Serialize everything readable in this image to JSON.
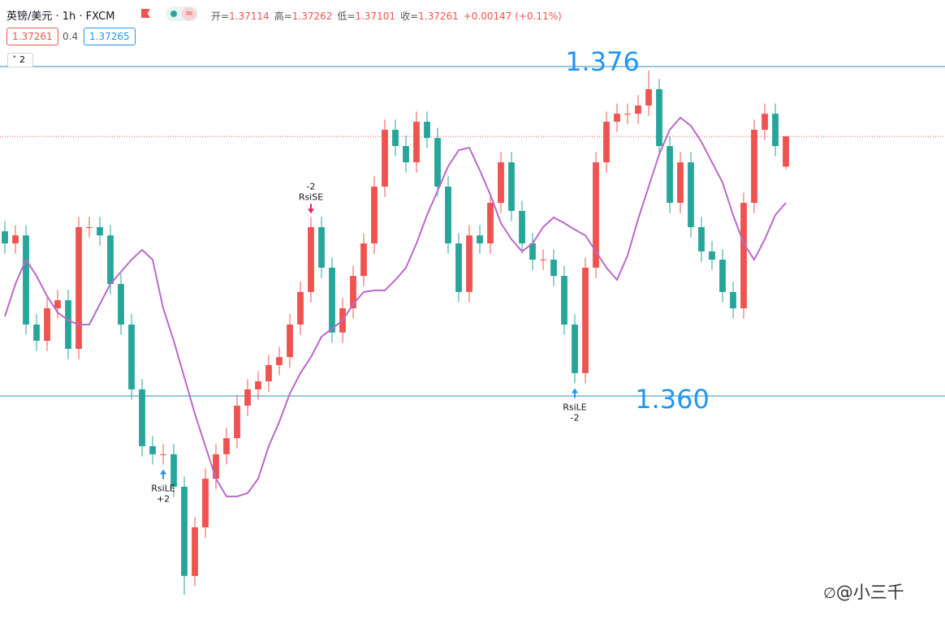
{
  "header": {
    "symbol": "英镑/美元 · 1h · FXCM",
    "ohlc": [
      {
        "label": "开=",
        "value": "1.37114"
      },
      {
        "label": "高=",
        "value": "1.37262"
      },
      {
        "label": "低=",
        "value": "1.37101"
      },
      {
        "label": "收=",
        "value": "1.37261"
      }
    ],
    "change": "+0.00147 (+0.11%)",
    "bid": "1.37261",
    "spread": "0.4",
    "ask": "1.37265",
    "indicators": "2"
  },
  "watermark": "@小三千",
  "chart_data": {
    "type": "candlestick",
    "open": [
      1.368,
      1.36741,
      1.3678,
      1.36347,
      1.36268,
      1.36426,
      1.36465,
      1.36229,
      1.3682,
      1.3682,
      1.3678,
      1.36544,
      1.36347,
      1.36032,
      1.35756,
      1.35717,
      1.35717,
      1.35559,
      1.35126,
      1.35362,
      1.35598,
      1.35717,
      1.35795,
      1.35953,
      1.36032,
      1.36071,
      1.3615,
      1.36189,
      1.36347,
      1.36505,
      1.3682,
      1.36623,
      1.36308,
      1.36426,
      1.36583,
      1.36741,
      1.37017,
      1.37293,
      1.37214,
      1.37135,
      1.37332,
      1.37253,
      1.37017,
      1.36741,
      1.36505,
      1.3678,
      1.36741,
      1.36938,
      1.37135,
      1.36899,
      1.36741,
      1.36662,
      1.36662,
      1.36583,
      1.36347,
      1.36111,
      1.36623,
      1.37135,
      1.37332,
      1.37371,
      1.37371,
      1.37411,
      1.3749,
      1.37214,
      1.36938,
      1.37135,
      1.3682,
      1.36702,
      1.36662,
      1.36505,
      1.36426,
      1.36938,
      1.37293,
      1.37371,
      1.37114
    ],
    "high": [
      1.3685,
      1.3683,
      1.3683,
      1.36397,
      1.36476,
      1.36515,
      1.36515,
      1.3687,
      1.3687,
      1.3687,
      1.3683,
      1.36594,
      1.36397,
      1.36082,
      1.35806,
      1.35767,
      1.35767,
      1.35609,
      1.35412,
      1.35648,
      1.35767,
      1.35845,
      1.36003,
      1.36082,
      1.36121,
      1.362,
      1.36239,
      1.36397,
      1.36555,
      1.3687,
      1.3687,
      1.36673,
      1.36476,
      1.36633,
      1.36791,
      1.37067,
      1.37343,
      1.37343,
      1.37264,
      1.37382,
      1.37382,
      1.37303,
      1.37067,
      1.36791,
      1.3683,
      1.3683,
      1.36988,
      1.37185,
      1.37185,
      1.36949,
      1.36791,
      1.36712,
      1.36712,
      1.36633,
      1.36397,
      1.36673,
      1.37185,
      1.37382,
      1.37421,
      1.37421,
      1.37461,
      1.3758,
      1.3754,
      1.37264,
      1.37185,
      1.37185,
      1.3687,
      1.36752,
      1.36712,
      1.36555,
      1.36988,
      1.37343,
      1.37421,
      1.37421,
      1.37262
    ],
    "low": [
      1.36691,
      1.36691,
      1.36297,
      1.36218,
      1.36218,
      1.36376,
      1.36179,
      1.36179,
      1.3677,
      1.3673,
      1.36494,
      1.36297,
      1.35982,
      1.35706,
      1.35667,
      1.35667,
      1.35509,
      1.35034,
      1.35076,
      1.35312,
      1.35548,
      1.35667,
      1.35745,
      1.35903,
      1.35982,
      1.36021,
      1.361,
      1.36139,
      1.36297,
      1.36455,
      1.36573,
      1.36258,
      1.36258,
      1.36376,
      1.36533,
      1.36691,
      1.36967,
      1.37164,
      1.37085,
      1.37085,
      1.37203,
      1.36967,
      1.36691,
      1.36455,
      1.36455,
      1.36691,
      1.36691,
      1.36888,
      1.36849,
      1.36691,
      1.36612,
      1.36612,
      1.36533,
      1.36297,
      1.36061,
      1.36061,
      1.36573,
      1.37085,
      1.37282,
      1.37321,
      1.37321,
      1.37361,
      1.37164,
      1.36888,
      1.36888,
      1.3677,
      1.36652,
      1.36612,
      1.36455,
      1.36376,
      1.36376,
      1.36888,
      1.37243,
      1.37164,
      1.37101
    ],
    "close": [
      1.36741,
      1.3678,
      1.36347,
      1.36268,
      1.36426,
      1.36465,
      1.36229,
      1.3682,
      1.3682,
      1.3678,
      1.36544,
      1.36347,
      1.36032,
      1.35756,
      1.35717,
      1.35717,
      1.35559,
      1.35126,
      1.35362,
      1.35598,
      1.35717,
      1.35795,
      1.35953,
      1.36032,
      1.36071,
      1.3615,
      1.36189,
      1.36347,
      1.36505,
      1.3682,
      1.36623,
      1.36308,
      1.36426,
      1.36583,
      1.36741,
      1.37017,
      1.37293,
      1.37214,
      1.37135,
      1.37332,
      1.37253,
      1.37017,
      1.36741,
      1.36505,
      1.3678,
      1.36741,
      1.36938,
      1.37135,
      1.36899,
      1.36741,
      1.36662,
      1.36662,
      1.36583,
      1.36347,
      1.36111,
      1.36623,
      1.37135,
      1.37332,
      1.37371,
      1.37371,
      1.37411,
      1.3749,
      1.37214,
      1.36938,
      1.37135,
      1.3682,
      1.36702,
      1.36662,
      1.36505,
      1.36426,
      1.36938,
      1.37293,
      1.37371,
      1.37214,
      1.37261
    ],
    "up_color": "#ef5350",
    "down_color": "#26a69a",
    "ma": {
      "color": "#ba68c8",
      "values": [
        1.36386,
        1.36544,
        1.36662,
        1.36583,
        1.36485,
        1.36406,
        1.36367,
        1.36347,
        1.36347,
        1.36446,
        1.36544,
        1.36603,
        1.36662,
        1.3671,
        1.36662,
        1.36426,
        1.36268,
        1.36091,
        1.35914,
        1.35756,
        1.35598,
        1.35512,
        1.35512,
        1.35528,
        1.35598,
        1.35756,
        1.35874,
        1.36012,
        1.36111,
        1.36189,
        1.36288,
        1.36327,
        1.36367,
        1.36446,
        1.36505,
        1.36513,
        1.36513,
        1.36564,
        1.36623,
        1.36741,
        1.36879,
        1.36997,
        1.37115,
        1.37194,
        1.37206,
        1.37096,
        1.36977,
        1.3684,
        1.36761,
        1.36702,
        1.36741,
        1.3682,
        1.36867,
        1.3684,
        1.36808,
        1.3678,
        1.36702,
        1.36623,
        1.36564,
        1.36682,
        1.36859,
        1.37017,
        1.37174,
        1.37293,
        1.37352,
        1.37312,
        1.37234,
        1.37135,
        1.37037,
        1.36879,
        1.36741,
        1.36662,
        1.36761,
        1.36879,
        1.36938
      ]
    },
    "levels": [
      {
        "value": 1.376,
        "label": "1.376"
      },
      {
        "value": 1.36,
        "label": "1.360"
      }
    ],
    "level_color": "#2a8fbd",
    "signals": [
      {
        "at": 15,
        "side": "long",
        "name": "RsiLE",
        "qty": "+2"
      },
      {
        "at": 29,
        "side": "short",
        "name": "RsiSE",
        "qty": "-2"
      },
      {
        "at": 54,
        "side": "long",
        "name": "RsiLE",
        "qty": "-2"
      }
    ],
    "ylim": [
      1.34873,
      1.37679
    ]
  }
}
